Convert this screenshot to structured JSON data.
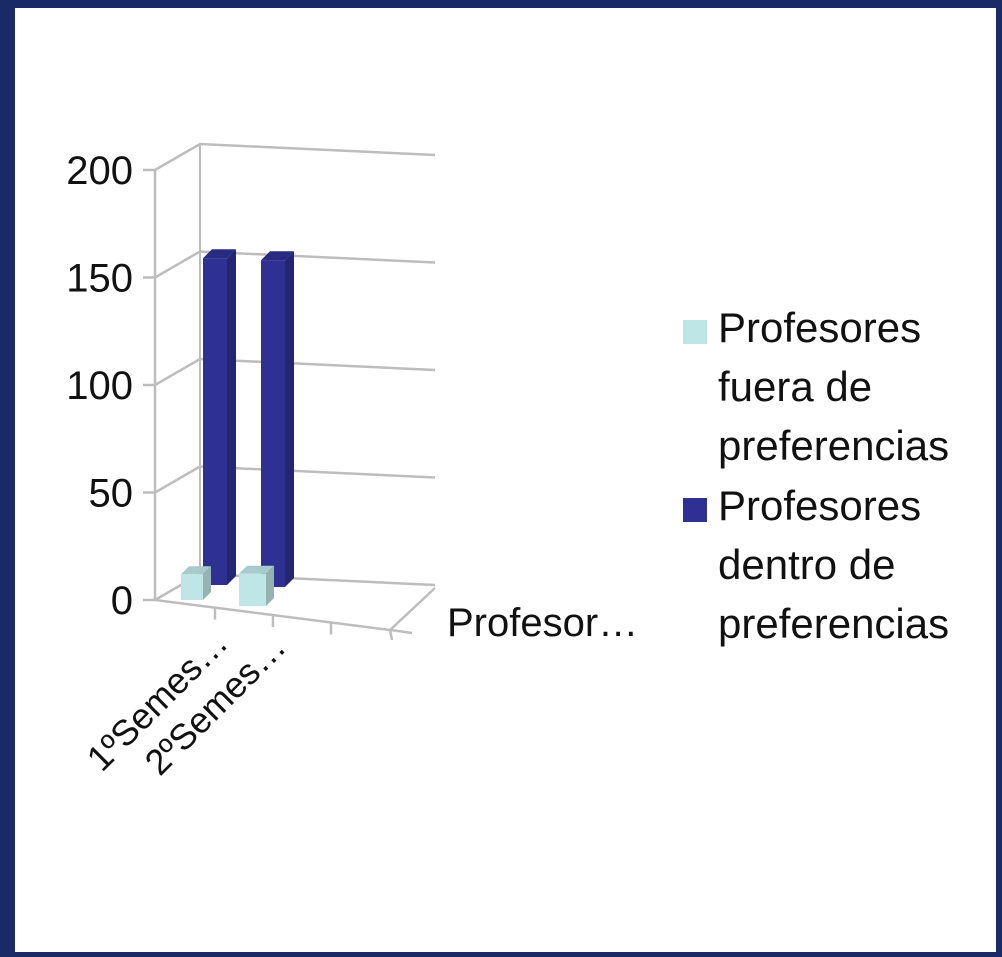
{
  "chart_data": {
    "type": "bar",
    "projection": "3d-column",
    "categories": [
      "1ºSemes…",
      "2ºSemes…"
    ],
    "depth_label": "Profesor…",
    "ylim": [
      0,
      200
    ],
    "yticks": [
      0,
      50,
      100,
      150,
      200
    ],
    "grid": true,
    "legend_position": "right",
    "series": [
      {
        "name": "Profesores fuera de preferencias",
        "legend_lines": [
          "Profesores",
          "fuera de",
          "preferencias"
        ],
        "color": "#bfe6e6",
        "values": [
          12,
          15
        ]
      },
      {
        "name": "Profesores dentro de preferencias",
        "legend_lines": [
          "Profesores",
          "dentro de",
          "preferencias"
        ],
        "color": "#2e3192",
        "values": [
          152,
          152
        ]
      }
    ]
  }
}
